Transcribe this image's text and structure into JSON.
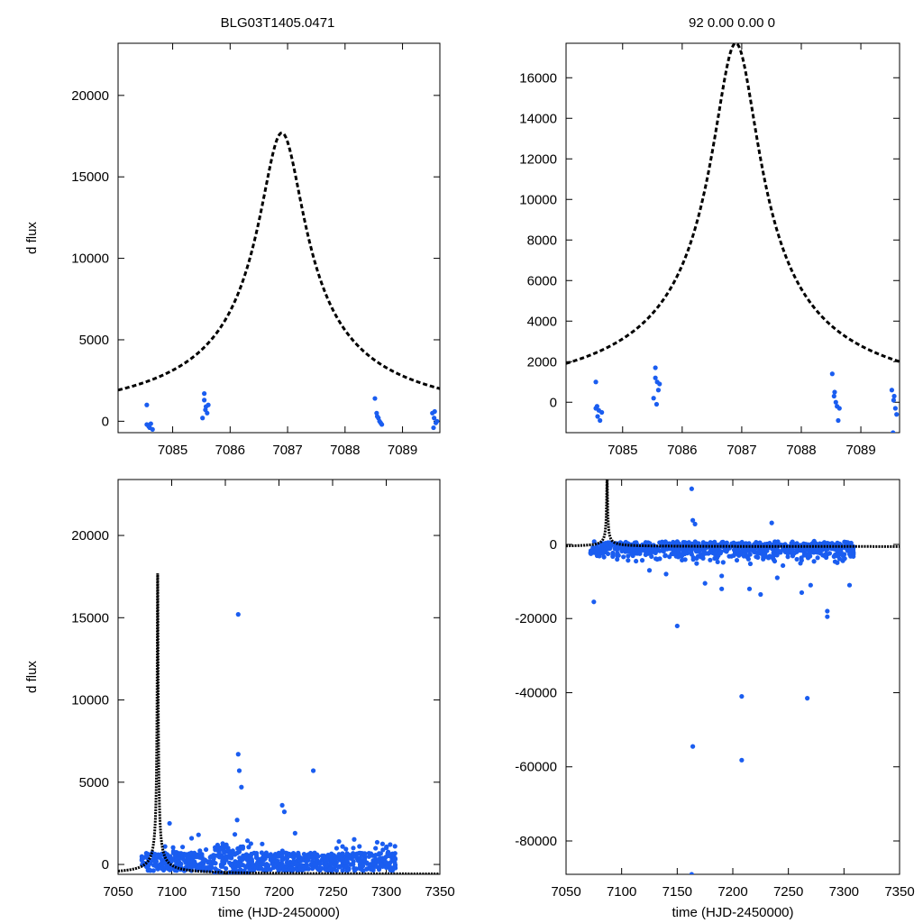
{
  "figure": {
    "title_left": "BLG03T1405.0471",
    "title_right": "92  0.00  0.00  0",
    "point_color": "#1a5df0",
    "model_color": "#000000"
  },
  "chart_data": [
    {
      "type": "scatter",
      "name": "zoom-dflux",
      "ylabel": "d flux",
      "xlabel": "",
      "xlim": [
        7084.05,
        7089.65
      ],
      "ylim": [
        -700,
        23200
      ],
      "xticks": [
        7085,
        7086,
        7087,
        7088,
        7089
      ],
      "yticks": [
        0,
        5000,
        10000,
        15000,
        20000
      ],
      "model": {
        "t0": 7086.9,
        "peak": 18300,
        "tau": 0.5,
        "offset": -600
      },
      "points": [
        [
          7084.55,
          1000
        ],
        [
          7084.55,
          -200
        ],
        [
          7084.6,
          -400
        ],
        [
          7084.62,
          -150
        ],
        [
          7084.65,
          -500
        ],
        [
          7084.58,
          -300
        ],
        [
          7085.52,
          200
        ],
        [
          7085.55,
          1300
        ],
        [
          7085.58,
          900
        ],
        [
          7085.6,
          500
        ],
        [
          7085.55,
          1700
        ],
        [
          7085.62,
          1000
        ],
        [
          7085.57,
          700
        ],
        [
          7088.52,
          1400
        ],
        [
          7088.55,
          500
        ],
        [
          7088.58,
          200
        ],
        [
          7088.6,
          0
        ],
        [
          7088.62,
          -100
        ],
        [
          7088.56,
          300
        ],
        [
          7088.64,
          -200
        ],
        [
          7089.52,
          500
        ],
        [
          7089.55,
          200
        ],
        [
          7089.58,
          -100
        ],
        [
          7089.6,
          0
        ],
        [
          7089.54,
          -400
        ],
        [
          7089.56,
          600
        ]
      ]
    },
    {
      "type": "scatter",
      "name": "zoom-residual",
      "ylabel": "",
      "xlabel": "",
      "xlim": [
        7084.05,
        7089.65
      ],
      "ylim": [
        -1500,
        17700
      ],
      "xticks": [
        7085,
        7086,
        7087,
        7088,
        7089
      ],
      "yticks": [
        0,
        2000,
        4000,
        6000,
        8000,
        10000,
        12000,
        14000,
        16000
      ],
      "model": {
        "t0": 7086.9,
        "peak": 18300,
        "tau": 0.5,
        "offset": -600
      },
      "points": [
        [
          7084.55,
          1000
        ],
        [
          7084.55,
          -300
        ],
        [
          7084.58,
          -700
        ],
        [
          7084.6,
          -400
        ],
        [
          7084.62,
          -900
        ],
        [
          7084.65,
          -500
        ],
        [
          7084.57,
          -200
        ],
        [
          7085.52,
          200
        ],
        [
          7085.55,
          1700
        ],
        [
          7085.58,
          1000
        ],
        [
          7085.6,
          600
        ],
        [
          7085.62,
          900
        ],
        [
          7085.57,
          -100
        ],
        [
          7085.55,
          1200
        ],
        [
          7088.52,
          1400
        ],
        [
          7088.55,
          300
        ],
        [
          7088.58,
          0
        ],
        [
          7088.6,
          -200
        ],
        [
          7088.62,
          -900
        ],
        [
          7088.56,
          500
        ],
        [
          7088.64,
          -300
        ],
        [
          7089.52,
          600
        ],
        [
          7089.55,
          100
        ],
        [
          7089.58,
          -300
        ],
        [
          7089.6,
          -600
        ],
        [
          7089.54,
          -1500
        ],
        [
          7089.56,
          300
        ]
      ]
    },
    {
      "type": "scatter",
      "name": "full-dflux",
      "ylabel": "d flux",
      "xlabel": "time (HJD-2450000)",
      "xlim": [
        7050,
        7350
      ],
      "ylim": [
        -600,
        23400
      ],
      "xticks": [
        7050,
        7100,
        7150,
        7200,
        7250,
        7300,
        7350
      ],
      "yticks": [
        0,
        5000,
        10000,
        15000,
        20000
      ],
      "model": {
        "t0": 7086.9,
        "peak": 18300,
        "tau": 0.5,
        "offset": -600
      },
      "outliers": [
        [
          7162,
          15200
        ],
        [
          7162,
          6700
        ],
        [
          7163,
          5700
        ],
        [
          7165,
          4700
        ],
        [
          7232,
          5700
        ],
        [
          7203,
          3600
        ],
        [
          7205,
          3200
        ],
        [
          7098,
          2500
        ],
        [
          7161,
          2700
        ],
        [
          7125,
          1800
        ],
        [
          7215,
          1900
        ],
        [
          7275,
          1100
        ]
      ]
    },
    {
      "type": "scatter",
      "name": "full-residual",
      "ylabel": "",
      "xlabel": "time (HJD-2450000)",
      "xlim": [
        7050,
        7350
      ],
      "ylim": [
        -89000,
        17500
      ],
      "xticks": [
        7050,
        7100,
        7150,
        7200,
        7250,
        7300,
        7350
      ],
      "yticks": [
        -80000,
        -60000,
        -40000,
        -20000,
        0
      ],
      "model": {
        "t0": 7086.9,
        "peak": 18300,
        "tau": 0.5,
        "offset": -600
      },
      "outliers": [
        [
          7163,
          15000
        ],
        [
          7164,
          6500
        ],
        [
          7166,
          5500
        ],
        [
          7235,
          5800
        ],
        [
          7150,
          -22000
        ],
        [
          7208,
          -41000
        ],
        [
          7267,
          -41500
        ],
        [
          7164,
          -54500
        ],
        [
          7208,
          -58200
        ],
        [
          7163,
          -89000
        ],
        [
          7075,
          -15500
        ],
        [
          7285,
          -19500
        ],
        [
          7285,
          -18000
        ],
        [
          7305,
          -11000
        ],
        [
          7175,
          -10500
        ],
        [
          7190,
          -12000
        ],
        [
          7215,
          -12000
        ],
        [
          7225,
          -13500
        ],
        [
          7262,
          -13000
        ],
        [
          7270,
          -11000
        ],
        [
          7190,
          -8500
        ],
        [
          7240,
          -9000
        ],
        [
          7125,
          -7000
        ],
        [
          7140,
          -8000
        ]
      ]
    }
  ]
}
